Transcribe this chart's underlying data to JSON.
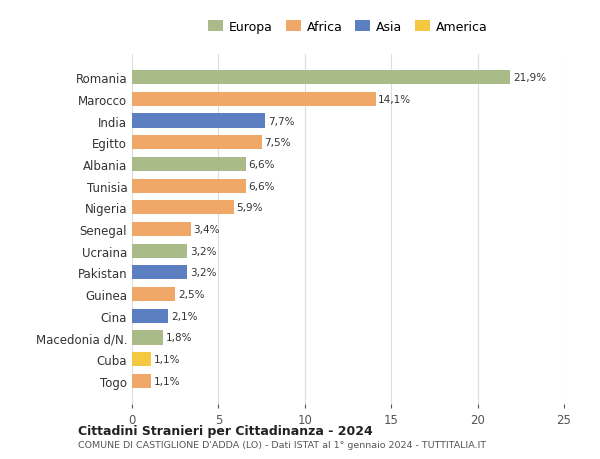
{
  "countries": [
    "Togo",
    "Cuba",
    "Macedonia d/N.",
    "Cina",
    "Guinea",
    "Pakistan",
    "Ucraina",
    "Senegal",
    "Nigeria",
    "Tunisia",
    "Albania",
    "Egitto",
    "India",
    "Marocco",
    "Romania"
  ],
  "values": [
    1.1,
    1.1,
    1.8,
    2.1,
    2.5,
    3.2,
    3.2,
    3.4,
    5.9,
    6.6,
    6.6,
    7.5,
    7.7,
    14.1,
    21.9
  ],
  "labels": [
    "1,1%",
    "1,1%",
    "1,8%",
    "2,1%",
    "2,5%",
    "3,2%",
    "3,2%",
    "3,4%",
    "5,9%",
    "6,6%",
    "6,6%",
    "7,5%",
    "7,7%",
    "14,1%",
    "21,9%"
  ],
  "colors": [
    "#f0a868",
    "#f5c842",
    "#a8bb88",
    "#5b7fc0",
    "#f0a868",
    "#5b7fc0",
    "#a8bb88",
    "#f0a868",
    "#f0a868",
    "#f0a868",
    "#a8bb88",
    "#f0a868",
    "#5b7fc0",
    "#f0a868",
    "#a8bb88"
  ],
  "legend": [
    {
      "label": "Europa",
      "color": "#a8bb88"
    },
    {
      "label": "Africa",
      "color": "#f0a868"
    },
    {
      "label": "Asia",
      "color": "#5b7fc0"
    },
    {
      "label": "America",
      "color": "#f5c842"
    }
  ],
  "title1": "Cittadini Stranieri per Cittadinanza - 2024",
  "title2": "COMUNE DI CASTIGLIONE D'ADDA (LO) - Dati ISTAT al 1° gennaio 2024 - TUTTITALIA.IT",
  "xlim": [
    0,
    25
  ],
  "xticks": [
    0,
    5,
    10,
    15,
    20,
    25
  ],
  "bg_color": "#ffffff",
  "grid_color": "#dddddd",
  "bar_height": 0.65
}
